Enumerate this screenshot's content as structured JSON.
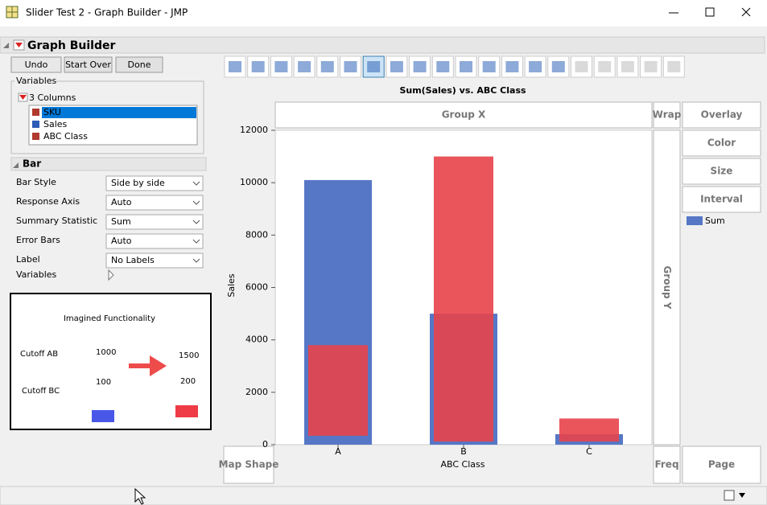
{
  "window": {
    "title": "Slider Test 2 - Graph Builder - JMP"
  },
  "panel": {
    "title": "Graph Builder"
  },
  "buttons": [
    "Undo",
    "Start Over",
    "Done"
  ],
  "variables": {
    "title": "Variables",
    "columns_label": "3 Columns",
    "items": [
      "SKU",
      "Sales",
      "ABC Class"
    ]
  },
  "bar_section": {
    "title": "Bar",
    "options": [
      {
        "label": "Bar Style",
        "value": "Side by side"
      },
      {
        "label": "Response Axis",
        "value": "Auto"
      },
      {
        "label": "Summary Statistic",
        "value": "Sum"
      },
      {
        "label": "Error Bars",
        "value": "Auto"
      },
      {
        "label": "Label",
        "value": "No Labels"
      }
    ],
    "variables_label": "Variables"
  },
  "annotation": {
    "title": "Imagined Functionality",
    "rows": [
      {
        "label": "Cutoff AB",
        "from": 1000,
        "to": 1500
      },
      {
        "label": "Cutoff BC",
        "from": 100,
        "to": 200
      }
    ]
  },
  "zones": {
    "group_x": "Group X",
    "group_y": "Group Y",
    "wrap": "Wrap",
    "overlay": "Overlay",
    "color": "Color",
    "size": "Size",
    "interval": "Interval",
    "freq": "Freq",
    "page": "Page",
    "map_shape": "Map Shape"
  },
  "chart": {
    "type": "bar",
    "title": "Sum(Sales) vs. ABC Class",
    "x_label": "ABC Class",
    "y_label": "Sales",
    "categories": [
      "A",
      "B",
      "C"
    ],
    "series": [
      {
        "name": "Sum",
        "color": "#5677c6",
        "values": [
          10100,
          5000,
          400
        ]
      }
    ],
    "highlight": {
      "color": "#e8434a",
      "low": [
        340,
        120,
        120
      ],
      "high": [
        3800,
        11000,
        1000
      ]
    },
    "ylim": [
      0,
      12000
    ],
    "yticks": [
      0,
      2000,
      4000,
      6000,
      8000,
      10000,
      12000
    ]
  }
}
